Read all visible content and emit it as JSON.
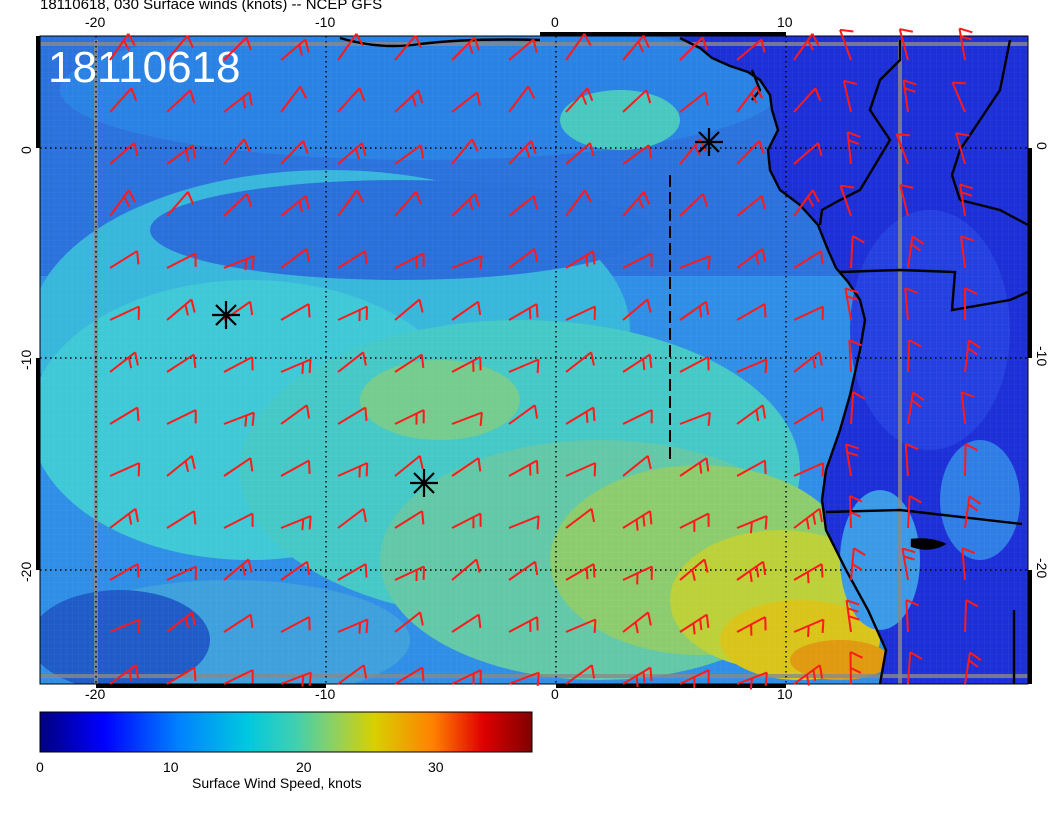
{
  "header": {
    "title": "18110618, 030 Surface winds (knots) -- NCEP GFS"
  },
  "map": {
    "stamp": "18110618",
    "lon_ticks_top": [
      "-20",
      "-10",
      "0",
      "10"
    ],
    "lon_ticks_bottom": [
      "-20",
      "-10",
      "0",
      "10"
    ],
    "lat_ticks_left": [
      "0",
      "-10",
      "-20"
    ],
    "lat_ticks_right": [
      "0",
      "-10",
      "-20"
    ],
    "barb_color": "#ff1a1a",
    "markers": [
      "storm-center-marker",
      "storm-center-marker",
      "storm-center-marker"
    ]
  },
  "colorbar": {
    "title": "Surface Wind Speed, knots",
    "tick_labels": [
      "0",
      "10",
      "20",
      "30"
    ],
    "min": 0,
    "max": 37,
    "colors": [
      "#00007f",
      "#0000ff",
      "#0080ff",
      "#00c8e0",
      "#40d0b0",
      "#90d060",
      "#d8d000",
      "#ff8000",
      "#e00000",
      "#7f0000"
    ]
  }
}
